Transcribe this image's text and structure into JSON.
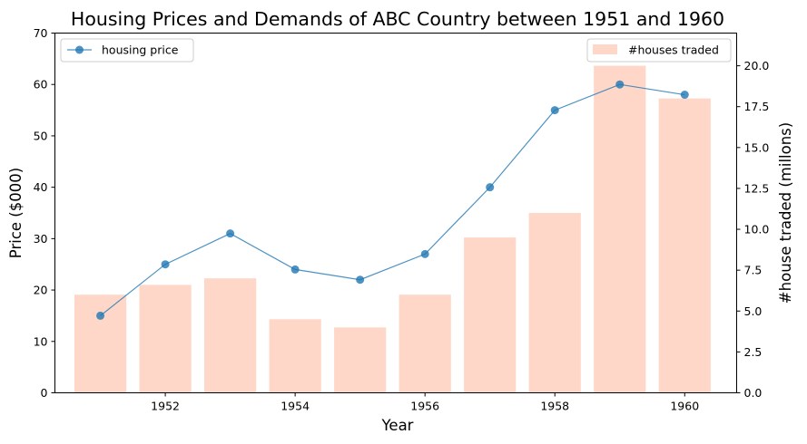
{
  "chart_data": {
    "type": "bar",
    "title": "Housing Prices and Demands of ABC Country between 1951 and 1960",
    "xlabel": "Year",
    "ylabel_left": "Price ($000)",
    "ylabel_right": "#house traded (millons)",
    "x": [
      1951,
      1952,
      1953,
      1954,
      1955,
      1956,
      1957,
      1958,
      1959,
      1960
    ],
    "xlim": [
      1950.3,
      1960.8
    ],
    "x_ticks": [
      1952,
      1954,
      1956,
      1958,
      1960
    ],
    "ylim_left": [
      0,
      70
    ],
    "y_ticks_left": [
      0,
      10,
      20,
      30,
      40,
      50,
      60,
      70
    ],
    "ylim_right": [
      0,
      22
    ],
    "y_ticks_right": [
      "0.0",
      "2.5",
      "5.0",
      "7.5",
      "10.0",
      "12.5",
      "15.0",
      "17.5",
      "20.0"
    ],
    "grid": false,
    "series": [
      {
        "name": "housing price",
        "type": "line",
        "axis": "left",
        "values": [
          15,
          25,
          31,
          24,
          22,
          27,
          40,
          55,
          60,
          58
        ],
        "color": "#1f77b4"
      },
      {
        "name": "#houses traded",
        "type": "bar",
        "axis": "right",
        "values": [
          6.0,
          6.6,
          7.0,
          4.5,
          4.0,
          6.0,
          9.5,
          11.0,
          20.0,
          18.0
        ],
        "color": "#ffd7c8"
      }
    ],
    "legends": [
      {
        "series": "housing price",
        "placement": "upper-left"
      },
      {
        "series": "#houses traded",
        "placement": "upper-right"
      }
    ]
  }
}
